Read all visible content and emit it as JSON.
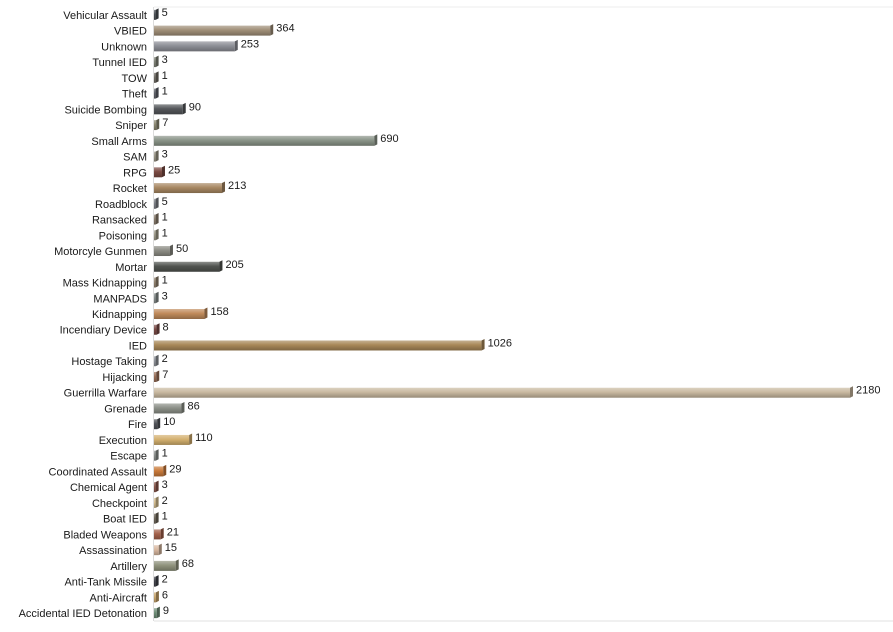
{
  "chart_data": {
    "type": "bar",
    "orientation": "horizontal",
    "title": "",
    "xlabel": "",
    "ylabel": "",
    "grid": false,
    "legend": "none",
    "xlim": [
      0,
      2180
    ],
    "categories": [
      "Vehicular Assault",
      "VBIED",
      "Unknown",
      "Tunnel IED",
      "TOW",
      "Theft",
      "Suicide Bombing",
      "Sniper",
      "Small Arms",
      "SAM",
      "RPG",
      "Rocket",
      "Roadblock",
      "Ransacked",
      "Poisoning",
      "Motorcyle Gunmen",
      "Mortar",
      "Mass Kidnapping",
      "MANPADS",
      "Kidnapping",
      "Incendiary Device",
      "IED",
      "Hostage Taking",
      "Hijacking",
      "Guerrilla Warfare",
      "Grenade",
      "Fire",
      "Execution",
      "Escape",
      "Coordinated Assault",
      "Chemical Agent",
      "Checkpoint",
      "Boat IED",
      "Bladed Weapons",
      "Assassination",
      "Artillery",
      "Anti-Tank Missile",
      "Anti-Aircraft",
      "Accidental IED Detonation"
    ],
    "values": [
      5,
      364,
      253,
      3,
      1,
      1,
      90,
      7,
      690,
      3,
      25,
      213,
      5,
      1,
      1,
      50,
      205,
      1,
      3,
      158,
      8,
      1026,
      2,
      7,
      2180,
      86,
      10,
      110,
      1,
      29,
      3,
      2,
      1,
      21,
      15,
      68,
      2,
      6,
      9
    ],
    "colors": [
      "#4a4f55",
      "#a08f78",
      "#8d8f96",
      "#7f8276",
      "#6e6a62",
      "#5d6068",
      "#54575a",
      "#8a8770",
      "#8a9488",
      "#9a9585",
      "#7a4a42",
      "#a88863",
      "#7c7f86",
      "#8a7c6c",
      "#9e9a88",
      "#8c8c84",
      "#515450",
      "#92826e",
      "#868d8c",
      "#c08a5a",
      "#7a4a45",
      "#a88858",
      "#8f939a",
      "#9a6e56",
      "#c9b9a0",
      "#8c9088",
      "#505358",
      "#d4b06f",
      "#8b8f8c",
      "#c97a3a",
      "#8a5548",
      "#d8c090",
      "#6d6558",
      "#a2604a",
      "#d8b8a0",
      "#8f927c",
      "#3e4048",
      "#c9a56a",
      "#6f8f78"
    ]
  }
}
